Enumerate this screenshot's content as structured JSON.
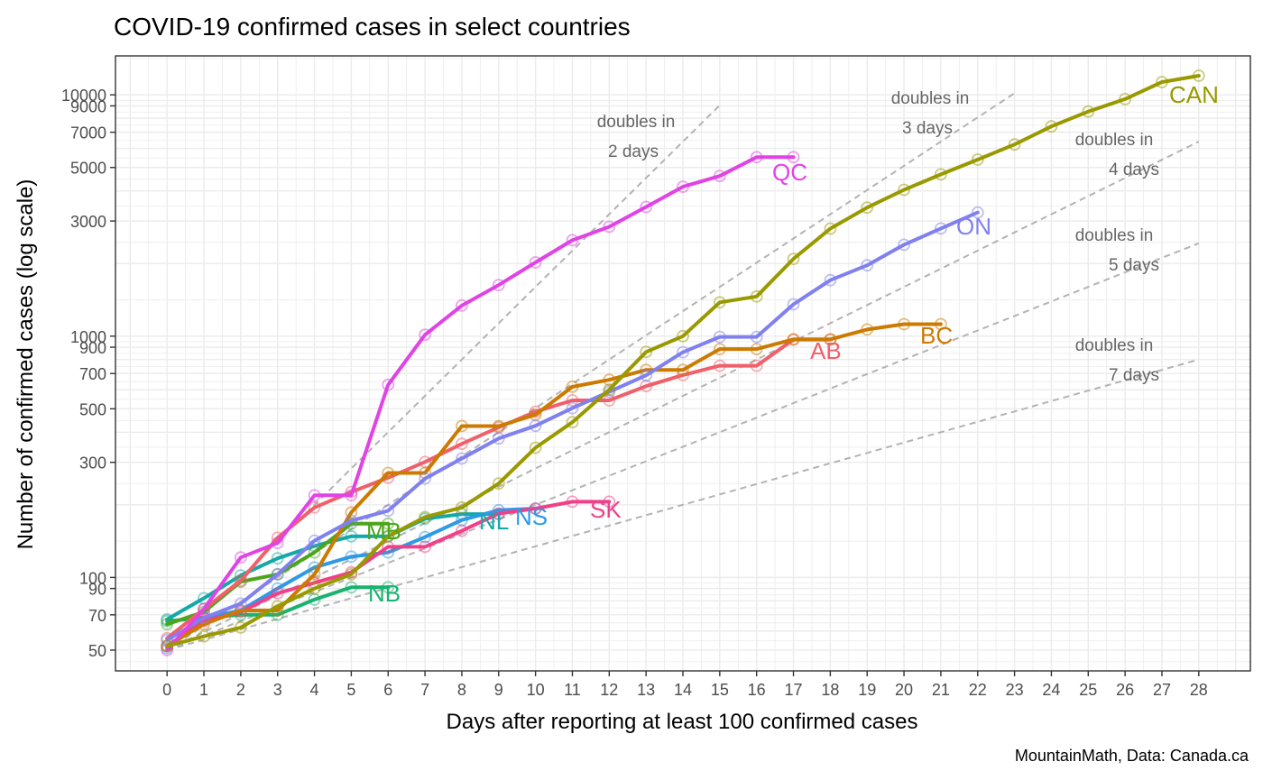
{
  "chart_data": {
    "type": "line",
    "title": "COVID-19 confirmed cases in select countries",
    "xlabel": "Days after reporting at least 100 confirmed cases",
    "ylabel": "Number of confirmed cases (log scale)",
    "caption": "MountainMath, Data: Canada.ca",
    "y_scale": "log",
    "xlim": [
      -1.4,
      29.4
    ],
    "ylim": [
      41,
      14500
    ],
    "x_ticks": [
      0,
      1,
      2,
      3,
      4,
      5,
      6,
      7,
      8,
      9,
      10,
      11,
      12,
      13,
      14,
      15,
      16,
      17,
      18,
      19,
      20,
      21,
      22,
      23,
      24,
      25,
      26,
      27,
      28
    ],
    "x_tick_labels": [
      "0",
      "1",
      "2",
      "3",
      "4",
      "5",
      "6",
      "7",
      "8",
      "9",
      "10",
      "11",
      "12",
      "13",
      "14",
      "15",
      "16",
      "17",
      "18",
      "19",
      "20",
      "21",
      "22",
      "23",
      "24",
      "25",
      "26",
      "27",
      "28"
    ],
    "y_ticks": [
      50,
      70,
      90,
      100,
      300,
      500,
      700,
      900,
      1000,
      3000,
      5000,
      7000,
      9000,
      10000
    ],
    "y_tick_labels": [
      "50",
      "70",
      "90",
      "100",
      "300",
      "500",
      "700",
      "900",
      "1000",
      "3000",
      "5000",
      "7000",
      "9000",
      "10000"
    ],
    "grid": true,
    "colors": {
      "grid": "#ebebeb",
      "axis_text": "#4d4d4d",
      "reference": "#b3b3b3",
      "reference_text": "#666666"
    },
    "reference_lines": [
      {
        "label_line1": "doubles in",
        "label_line2": "2 days",
        "doubling_days": 2,
        "x_end": 15.1
      },
      {
        "label_line1": "doubles in",
        "label_line2": "3 days",
        "doubling_days": 3,
        "x_end": 23
      },
      {
        "label_line1": "doubles in",
        "label_line2": "4 days",
        "doubling_days": 4,
        "x_end": 28
      },
      {
        "label_line1": "doubles in",
        "label_line2": "5 days",
        "doubling_days": 5,
        "x_end": 28
      },
      {
        "label_line1": "doubles in",
        "label_line2": "7 days",
        "doubling_days": 7,
        "x_end": 28
      }
    ],
    "series": [
      {
        "name": "CAN",
        "color": "#999900",
        "x": [
          0,
          1,
          2,
          3,
          4,
          5,
          6,
          7,
          8,
          9,
          10,
          11,
          12,
          13,
          14,
          15,
          16,
          17,
          18,
          19,
          20,
          21,
          22,
          23,
          24,
          25,
          26,
          27,
          28
        ],
        "values": [
          52,
          57,
          62,
          76,
          90,
          103,
          148,
          178,
          195,
          245,
          345,
          440,
          600,
          860,
          1000,
          1380,
          1460,
          2090,
          2790,
          3410,
          4040,
          4680,
          5390,
          6230,
          7400,
          8530,
          9600,
          11300,
          12000
        ]
      },
      {
        "name": "QC",
        "color": "#e043e6",
        "x": [
          0,
          1,
          2,
          3,
          4,
          5,
          6,
          7,
          8,
          9,
          10,
          11,
          12,
          13,
          14,
          15,
          16,
          17
        ],
        "values": [
          50,
          74,
          121,
          139,
          219,
          219,
          628,
          1013,
          1339,
          1629,
          2021,
          2498,
          2840,
          3430,
          4162,
          4611,
          5518,
          5518
        ]
      },
      {
        "name": "ON",
        "color": "#8080f0",
        "x": [
          0,
          1,
          2,
          3,
          4,
          5,
          6,
          7,
          8,
          9,
          10,
          11,
          12,
          13,
          14,
          15,
          16,
          17,
          18,
          19,
          20,
          21,
          22
        ],
        "values": [
          55,
          68,
          78,
          103,
          142,
          172,
          189,
          257,
          311,
          377,
          425,
          503,
          588,
          688,
          858,
          993,
          993,
          1355,
          1706,
          1966,
          2392,
          2793,
          3255
        ]
      },
      {
        "name": "BC",
        "color": "#cc7a00",
        "x": [
          0,
          1,
          2,
          3,
          4,
          5,
          6,
          7,
          8,
          9,
          10,
          11,
          12,
          13,
          14,
          15,
          16,
          17,
          18,
          19,
          20,
          21
        ],
        "values": [
          52,
          64,
          73,
          73,
          103,
          186,
          271,
          271,
          424,
          424,
          472,
          617,
          659,
          725,
          725,
          884,
          884,
          970,
          970,
          1066,
          1121,
          1121
        ]
      },
      {
        "name": "AB",
        "color": "#f0606a",
        "x": [
          0,
          1,
          2,
          3,
          4,
          5,
          6,
          7,
          8,
          9,
          10,
          11,
          12,
          13,
          14,
          15,
          16,
          17,
          18
        ],
        "values": [
          56,
          74,
          97,
          146,
          195,
          226,
          259,
          301,
          358,
          419,
          486,
          542,
          542,
          621,
          690,
          754,
          754,
          968,
          968
        ]
      },
      {
        "name": "SK",
        "color": "#f0408a",
        "x": [
          0,
          1,
          2,
          3,
          4,
          5,
          6,
          7,
          8,
          9,
          10,
          11,
          12
        ],
        "values": [
          52,
          66,
          72,
          86,
          95,
          105,
          134,
          134,
          156,
          184,
          193,
          206,
          206
        ]
      },
      {
        "name": "MB",
        "color": "#4ca619",
        "x": [
          0,
          1,
          2,
          3,
          4,
          5,
          6
        ],
        "values": [
          64,
          72,
          96,
          103,
          127,
          167,
          167
        ]
      },
      {
        "name": "NS",
        "color": "#2e9ae6",
        "x": [
          0,
          1,
          2,
          3,
          4,
          5,
          6,
          7,
          8,
          9,
          10
        ],
        "values": [
          51,
          68,
          73,
          90,
          110,
          122,
          127,
          147,
          173,
          190,
          193
        ]
      },
      {
        "name": "NL",
        "color": "#14a8a8",
        "x": [
          0,
          1,
          2,
          3,
          4,
          5,
          6,
          7,
          8,
          9
        ],
        "values": [
          67,
          82,
          102,
          120,
          135,
          148,
          148,
          175,
          183,
          183
        ]
      },
      {
        "name": "NB",
        "color": "#19b270",
        "x": [
          0,
          1,
          2,
          3,
          4,
          5,
          6
        ],
        "values": [
          66,
          68,
          70,
          70,
          81,
          91,
          91
        ]
      }
    ]
  }
}
